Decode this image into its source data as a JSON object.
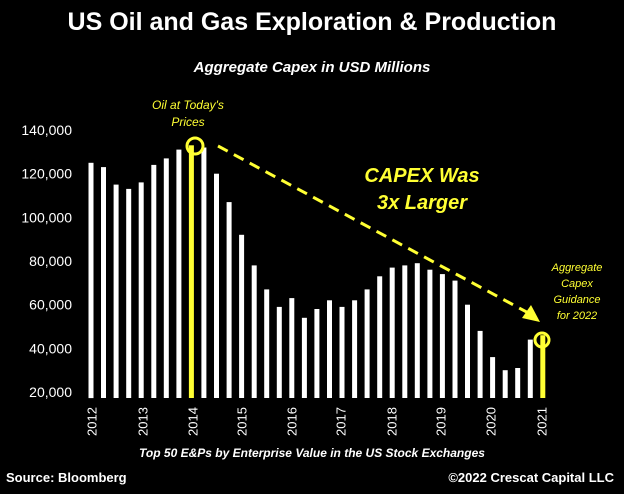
{
  "chart_data": {
    "type": "bar",
    "title": "US Oil and Gas Exploration & Production",
    "subtitle": "Aggregate Capex in USD Millions",
    "xlabel": "Top 50 E&Ps by Enterprise Value in the US Stock Exchanges",
    "ylabel": "",
    "ylim": [
      20000,
      140000
    ],
    "yticks": [
      "20,000",
      "40,000",
      "60,000",
      "80,000",
      "100,000",
      "120,000",
      "140,000"
    ],
    "ytick_values": [
      20000,
      40000,
      60000,
      80000,
      100000,
      120000,
      140000
    ],
    "xticks": [
      "2012",
      "2013",
      "2014",
      "2015",
      "2016",
      "2017",
      "2018",
      "2019",
      "2020",
      "2021"
    ],
    "values": [
      125000,
      123000,
      115000,
      113000,
      116000,
      124000,
      127000,
      131000,
      133000,
      132000,
      120000,
      107000,
      92000,
      78000,
      67000,
      59000,
      63000,
      54000,
      58000,
      62000,
      59000,
      62000,
      67000,
      73000,
      77000,
      78000,
      79000,
      76000,
      74000,
      71000,
      60000,
      48000,
      36000,
      30000,
      31000,
      44000,
      46000
    ],
    "highlight_indices": [
      8,
      36
    ],
    "bar_color": "#ffffff",
    "highlight_color": "#ffff33",
    "grid": false
  },
  "annotations": {
    "today_prices_line1": "Oil at Today's",
    "today_prices_line2": "Prices",
    "capex_line1": "CAPEX Was",
    "capex_line2": "3x Larger",
    "guidance_line1": "Aggregate",
    "guidance_line2": "Capex",
    "guidance_line3": "Guidance",
    "guidance_line4": "for 2022",
    "accent_color": "#ffff33"
  },
  "footer": {
    "source": "Source: Bloomberg",
    "copyright": "©2022 Crescat Capital LLC"
  }
}
